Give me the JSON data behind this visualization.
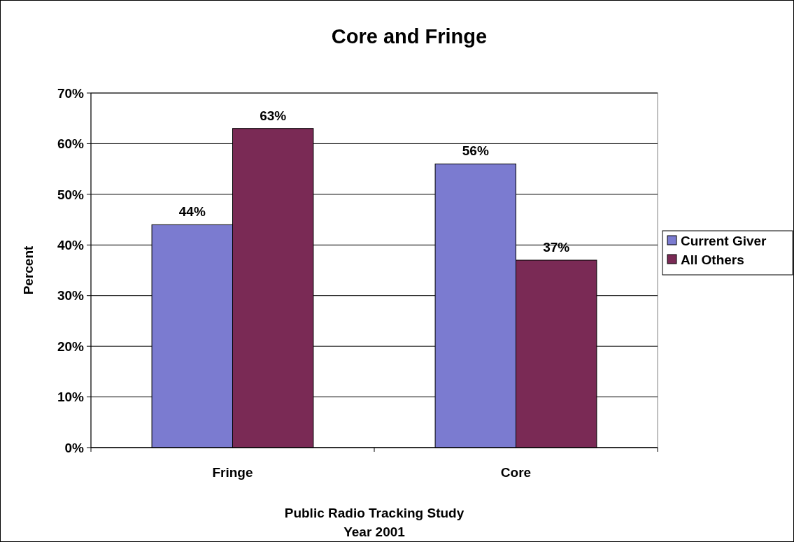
{
  "chart_data": {
    "type": "bar",
    "title": "Core and Fringe",
    "xlabel": "Public Radio Tracking Study\nYear 2001",
    "ylabel": "Percent",
    "categories": [
      "Fringe",
      "Core"
    ],
    "series": [
      {
        "name": "Current Giver",
        "color": "#7b7bd0",
        "values": [
          44,
          56
        ],
        "value_labels": [
          "44%",
          "56%"
        ]
      },
      {
        "name": "All Others",
        "color": "#7a2a55",
        "values": [
          63,
          37
        ],
        "value_labels": [
          "63%",
          "37%"
        ]
      }
    ],
    "ylim": [
      0,
      70
    ],
    "yticks": [
      {
        "value": 0,
        "label": "0%"
      },
      {
        "value": 10,
        "label": "10%"
      },
      {
        "value": 20,
        "label": "20%"
      },
      {
        "value": 30,
        "label": "30%"
      },
      {
        "value": 40,
        "label": "40%"
      },
      {
        "value": 50,
        "label": "50%"
      },
      {
        "value": 60,
        "label": "60%"
      },
      {
        "value": 70,
        "label": "70%"
      }
    ],
    "grid": "y",
    "legend": "right"
  }
}
